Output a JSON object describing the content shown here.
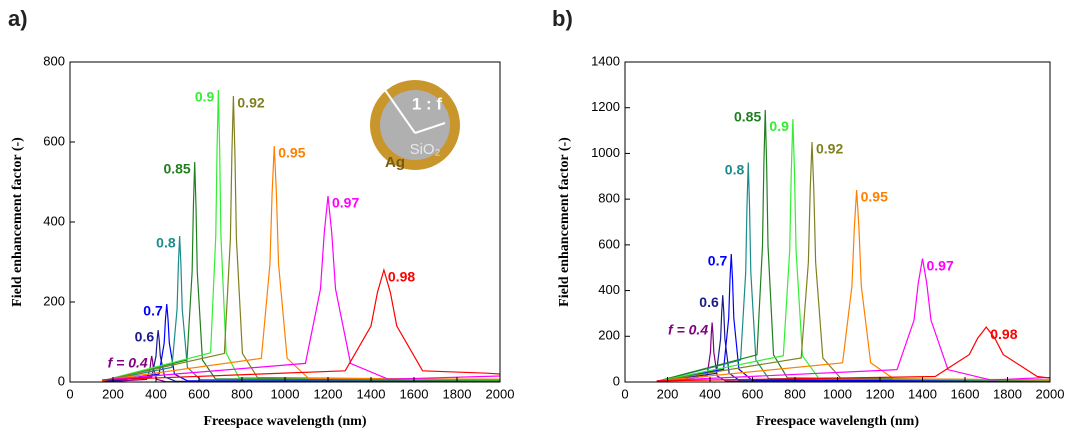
{
  "chart_data": [
    {
      "type": "line",
      "panel_label": "a)",
      "x_label": "Freespace wavelength (nm)",
      "y_label": "Field enhancement factor (-)",
      "xlim": [
        0,
        2000
      ],
      "ylim": [
        0,
        800
      ],
      "xticks": [
        0,
        200,
        400,
        600,
        800,
        1000,
        1200,
        1400,
        1600,
        1800,
        2000
      ],
      "yticks": [
        0,
        200,
        400,
        600,
        800
      ],
      "inset_labels": [
        "1 : f",
        "Ag",
        "SiO₂"
      ],
      "series": [
        {
          "name": "f = 0.4",
          "color": "#800080",
          "x": [
            150,
            356,
            372,
            376,
            380,
            384,
            388,
            404,
            444,
            2000
          ],
          "values": [
            0,
            6.5,
            32.5,
            52,
            65,
            52,
            32.5,
            6.5,
            1,
            0
          ]
        },
        {
          "name": "0.6",
          "color": "#1a1a8c",
          "x": [
            150,
            380,
            400,
            405,
            410,
            415,
            420,
            440,
            490,
            2000
          ],
          "values": [
            1,
            13,
            65,
            104,
            130,
            104,
            65,
            13,
            2,
            1
          ]
        },
        {
          "name": "0.7",
          "color": "#0000ff",
          "x": [
            150,
            414,
            438,
            444,
            450,
            456,
            462,
            486,
            546,
            2000
          ],
          "values": [
            1,
            19.5,
            97.5,
            156,
            195,
            156,
            97.5,
            19.5,
            3,
            2
          ]
        },
        {
          "name": "0.8",
          "color": "#1a8c8c",
          "x": [
            150,
            474,
            498,
            504,
            510,
            516,
            522,
            546,
            606,
            2000
          ],
          "values": [
            2,
            36.5,
            182.5,
            292,
            365,
            292,
            182.5,
            36.5,
            6,
            3
          ]
        },
        {
          "name": "0.85",
          "color": "#208020",
          "x": [
            150,
            544,
            568,
            574,
            580,
            586,
            592,
            616,
            676,
            2000
          ],
          "values": [
            3,
            55,
            275,
            440,
            550,
            440,
            275,
            55,
            8,
            4
          ]
        },
        {
          "name": "0.9",
          "color": "#33ee33",
          "x": [
            150,
            654,
            678,
            684,
            690,
            696,
            702,
            726,
            786,
            2000
          ],
          "values": [
            3,
            73,
            365,
            584,
            730,
            584,
            365,
            73,
            11,
            5
          ]
        },
        {
          "name": "0.92",
          "color": "#808020",
          "x": [
            150,
            718,
            746,
            753,
            760,
            767,
            774,
            802,
            872,
            2000
          ],
          "values": [
            3,
            71.5,
            357.5,
            572,
            715,
            572,
            357.5,
            71.5,
            11,
            6
          ]
        },
        {
          "name": "0.95",
          "color": "#ff8000",
          "x": [
            150,
            890,
            930,
            940,
            950,
            960,
            970,
            1010,
            1110,
            2000
          ],
          "values": [
            4,
            59,
            295,
            472,
            590,
            472,
            295,
            59,
            9,
            7
          ]
        },
        {
          "name": "0.97",
          "color": "#ff00ff",
          "x": [
            150,
            1095,
            1165,
            1182.5,
            1200,
            1217.5,
            1235,
            1305,
            1480,
            2000
          ],
          "values": [
            5,
            46.5,
            232.5,
            372,
            465,
            372,
            232.5,
            46.5,
            7,
            15
          ]
        },
        {
          "name": "0.98",
          "color": "#ff0000",
          "x": [
            150,
            1280,
            1400,
            1430,
            1460,
            1490,
            1520,
            1640,
            1940,
            2000
          ],
          "values": [
            5,
            28,
            140,
            224,
            280,
            224,
            140,
            28,
            22,
            20
          ]
        }
      ]
    },
    {
      "type": "line",
      "panel_label": "b)",
      "x_label": "Freespace wavelength (nm)",
      "y_label": "Field enhancement factor (-)",
      "xlim": [
        0,
        2000
      ],
      "ylim": [
        0,
        1400
      ],
      "xticks": [
        0,
        200,
        400,
        600,
        800,
        1000,
        1200,
        1400,
        1600,
        1800,
        2000
      ],
      "yticks": [
        0,
        200,
        400,
        600,
        800,
        1000,
        1200,
        1400
      ],
      "series": [
        {
          "name": "f = 0.4",
          "color": "#800080",
          "x": [
            150,
            386,
            402,
            406,
            410,
            414,
            418,
            434,
            474,
            2000
          ],
          "values": [
            0,
            26,
            130,
            208,
            260,
            208,
            130,
            26,
            4,
            2
          ]
        },
        {
          "name": "0.6",
          "color": "#1a1a8c",
          "x": [
            150,
            430,
            450,
            455,
            460,
            465,
            470,
            490,
            540,
            2000
          ],
          "values": [
            1,
            38,
            190,
            304,
            380,
            304,
            190,
            38,
            6,
            3
          ]
        },
        {
          "name": "0.7",
          "color": "#0000ff",
          "x": [
            150,
            464,
            488,
            494,
            500,
            506,
            512,
            536,
            596,
            2000
          ],
          "values": [
            1,
            56,
            280,
            448,
            560,
            448,
            280,
            56,
            9,
            4
          ]
        },
        {
          "name": "0.8",
          "color": "#1a8c8c",
          "x": [
            150,
            544,
            568,
            574,
            580,
            586,
            592,
            616,
            676,
            2000
          ],
          "values": [
            2,
            96,
            480,
            768,
            960,
            768,
            480,
            96,
            15,
            5
          ]
        },
        {
          "name": "0.85",
          "color": "#208020",
          "x": [
            150,
            621,
            647,
            653.5,
            660,
            666.5,
            673,
            699,
            764,
            2000
          ],
          "values": [
            3,
            119,
            595,
            952,
            1190,
            952,
            595,
            119,
            18,
            6
          ]
        },
        {
          "name": "0.9",
          "color": "#33ee33",
          "x": [
            150,
            745,
            775,
            782.5,
            790,
            797.5,
            805,
            835,
            910,
            2000
          ],
          "values": [
            3,
            115,
            575,
            920,
            1150,
            920,
            575,
            115,
            18,
            7
          ]
        },
        {
          "name": "0.92",
          "color": "#808020",
          "x": [
            150,
            829,
            863,
            871.5,
            880,
            888.5,
            897,
            931,
            1016,
            2000
          ],
          "values": [
            3,
            105,
            525,
            840,
            1050,
            840,
            525,
            105,
            16,
            8
          ]
        },
        {
          "name": "0.95",
          "color": "#ff8000",
          "x": [
            150,
            1024,
            1068,
            1079,
            1090,
            1101,
            1112,
            1156,
            1266,
            2000
          ],
          "values": [
            4,
            84,
            420,
            672,
            840,
            672,
            420,
            84,
            13,
            10
          ]
        },
        {
          "name": "0.97",
          "color": "#ff00ff",
          "x": [
            150,
            1280,
            1360,
            1380,
            1400,
            1420,
            1440,
            1520,
            1720,
            2000
          ],
          "values": [
            5,
            54,
            270,
            432,
            540,
            432,
            270,
            54,
            9,
            20
          ]
        },
        {
          "name": "0.98",
          "color": "#ff0000",
          "x": [
            150,
            1460,
            1620,
            1660,
            1700,
            1740,
            1780,
            1940,
            2000
          ],
          "values": [
            5,
            24,
            120,
            192,
            240,
            192,
            120,
            24,
            17
          ]
        }
      ]
    }
  ]
}
